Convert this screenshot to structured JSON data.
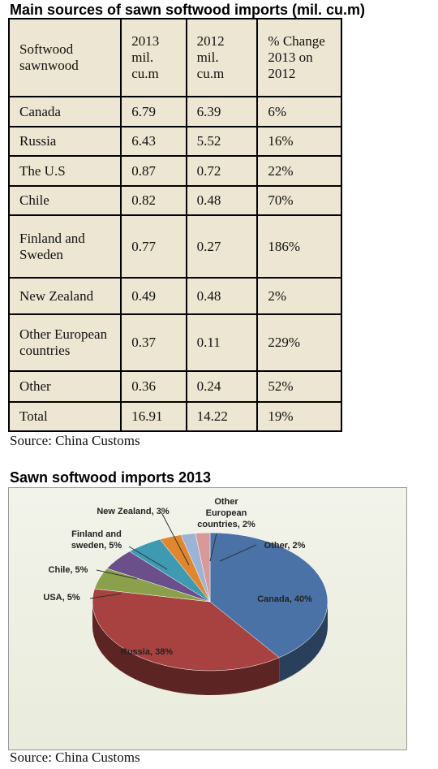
{
  "header": {
    "title": "Main sources of sawn softwood imports (mil. cu.m)"
  },
  "table": {
    "columns": [
      "Softwood sawnwood",
      "2013 mil. cu.m",
      "2012 mil. cu.m",
      "% Change 2013 on 2012"
    ],
    "rows": [
      [
        "Canada",
        "6.79",
        "6.39",
        "6%"
      ],
      [
        "Russia",
        "6.43",
        "5.52",
        "16%"
      ],
      [
        "The U.S",
        "0.87",
        "0.72",
        "22%"
      ],
      [
        "Chile",
        "0.82",
        "0.48",
        "70%"
      ],
      [
        "Finland and Sweden",
        "0.77",
        "0.27",
        "186%"
      ],
      [
        "New Zealand",
        "0.49",
        "0.48",
        "2%"
      ],
      [
        "Other European countries",
        "0.37",
        "0.11",
        "229%"
      ],
      [
        "Other",
        "0.36",
        "0.24",
        "52%"
      ],
      [
        "Total",
        "16.91",
        "14.22",
        "19%"
      ]
    ]
  },
  "table_source": "Source: China Customs",
  "chart_data": {
    "type": "pie",
    "title": "Sawn softwood imports 2013",
    "values": [
      40,
      38,
      5,
      5,
      5,
      3,
      2,
      2
    ],
    "value_labels": [
      "Canada, 40%",
      "Russia, 38%",
      "USA, 5%",
      "Chile, 5%",
      "Finland and sweden, 5%",
      "New Zealand, 3%",
      "Other European countries, 2%",
      "Other, 2%"
    ],
    "colors": [
      "#4a72a6",
      "#a84240",
      "#8aa04a",
      "#6a4f8a",
      "#3d9ab0",
      "#e0862e",
      "#9db3d6",
      "#d89a98"
    ]
  },
  "chart_source": "Source: China Customs"
}
